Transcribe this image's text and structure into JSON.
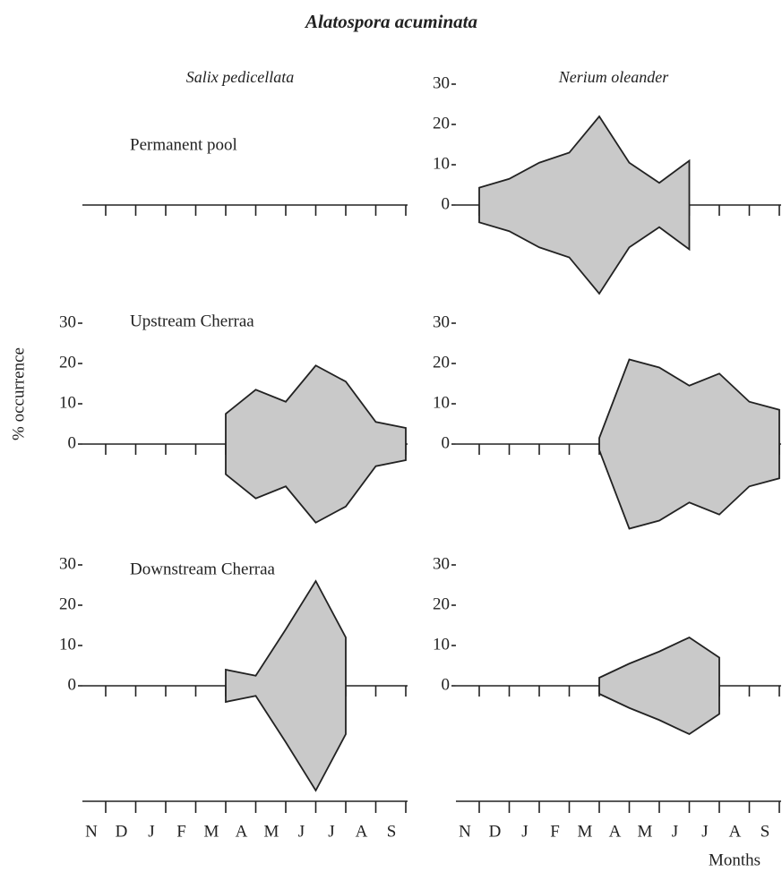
{
  "chart_data": {
    "type": "kite",
    "title": "Alatospora acuminata",
    "x_label": "Months",
    "y_label": "% occurrence",
    "categories": [
      "N",
      "D",
      "J",
      "F",
      "M",
      "A",
      "M",
      "J",
      "J",
      "A",
      "S"
    ],
    "rows": [
      "Permanent pool",
      "Upstream Cherraa",
      "Downstream Cherraa"
    ],
    "ylim": [
      0,
      30
    ],
    "yticks": [
      0,
      10,
      20,
      30
    ],
    "color": "#c9c9c9",
    "columns": [
      {
        "name": "Salix pedicellata",
        "panels": [
          {
            "values": [
              0,
              0,
              0,
              0,
              0,
              0,
              0,
              0,
              0,
              0,
              0
            ],
            "yaxis": false
          },
          {
            "values": [
              0,
              0,
              0,
              0,
              7.5,
              13.5,
              10.5,
              19.5,
              15.5,
              5.5,
              4
            ],
            "yaxis": true
          },
          {
            "values": [
              0,
              0,
              0,
              0,
              4,
              2.5,
              14,
              26,
              12,
              0,
              0
            ],
            "yaxis": true
          }
        ]
      },
      {
        "name": "Nerium oleander",
        "panels": [
          {
            "values": [
              4.3,
              6.5,
              10.5,
              13,
              22,
              10.5,
              5.5,
              11,
              0,
              0,
              0
            ],
            "yaxis": true
          },
          {
            "values": [
              0,
              0,
              0,
              0,
              1.5,
              21,
              19,
              14.5,
              17.5,
              10.5,
              8.5
            ],
            "yaxis": true
          },
          {
            "values": [
              0,
              0,
              0,
              0,
              2,
              5.5,
              8.5,
              12,
              7,
              0,
              0
            ],
            "yaxis": true
          }
        ]
      }
    ]
  }
}
